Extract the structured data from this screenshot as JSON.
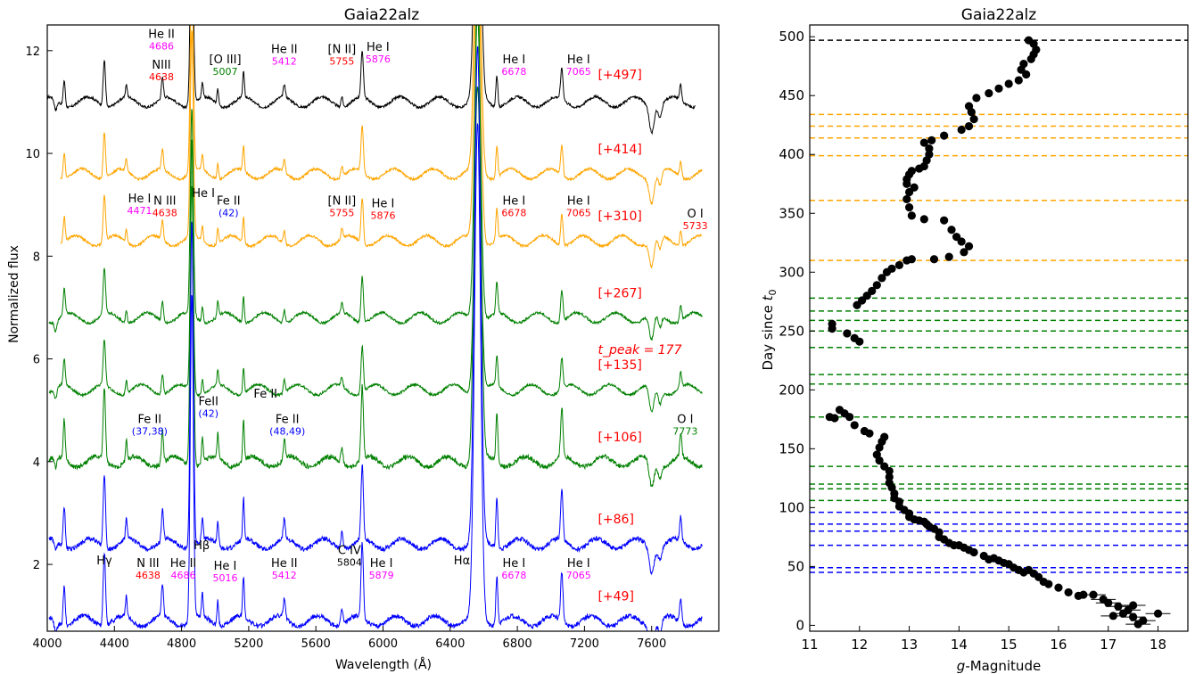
{
  "chart_data": [
    {
      "type": "line",
      "title": "Gaia22alz",
      "xlabel": "Wavelength (Å)",
      "ylabel": "Normalized flux",
      "xlim": [
        4000,
        8000
      ],
      "ylim": [
        0.7,
        12.5
      ],
      "xticks": [
        4000,
        4400,
        4800,
        5200,
        5600,
        6000,
        6400,
        6800,
        7200,
        7600
      ],
      "yticks": [
        2,
        4,
        6,
        8,
        10,
        12
      ],
      "peak_label": "t_peak = 177",
      "series": [
        {
          "label": "[+497]",
          "color": "#000000",
          "offset": 11.0,
          "label_y": 11.45
        },
        {
          "label": "[+414]",
          "color": "#ffa500",
          "offset": 9.6,
          "label_y": 10.0
        },
        {
          "label": "[+310]",
          "color": "#ffa500",
          "offset": 8.3,
          "label_y": 8.7
        },
        {
          "label": "[+267]",
          "color": "#008000",
          "offset": 6.8,
          "label_y": 7.2
        },
        {
          "label": "[+135]",
          "color": "#008000",
          "offset": 5.4,
          "label_y": 5.8
        },
        {
          "label": "[+106]",
          "color": "#008000",
          "offset": 4.0,
          "label_y": 4.4
        },
        {
          "label": "[+86]",
          "color": "#0000ff",
          "offset": 2.4,
          "label_y": 2.8
        },
        {
          "label": "[+49]",
          "color": "#0000ff",
          "offset": 0.9,
          "label_y": 1.3
        }
      ],
      "line_ids": [
        {
          "name": "He II",
          "value": "4686",
          "value_color": "#ff00ff",
          "x": 4680,
          "y": 12.25
        },
        {
          "name": "NIII",
          "value": "4638",
          "value_color": "#ff0000",
          "x": 4680,
          "y": 11.65
        },
        {
          "name": "[O III]",
          "value": "5007",
          "value_color": "#008000",
          "x": 5060,
          "y": 11.75
        },
        {
          "name": "He II",
          "value": "5412",
          "value_color": "#ff00ff",
          "x": 5412,
          "y": 11.95
        },
        {
          "name": "[N II]",
          "value": "5755",
          "value_color": "#ff0000",
          "x": 5755,
          "y": 11.95
        },
        {
          "name": "He I",
          "value": "5876",
          "value_color": "#ff00ff",
          "x": 5970,
          "y": 12.0
        },
        {
          "name": "He I",
          "value": "6678",
          "value_color": "#ff00ff",
          "x": 6780,
          "y": 11.75
        },
        {
          "name": "He I",
          "value": "7065",
          "value_color": "#ff00ff",
          "x": 7165,
          "y": 11.75
        },
        {
          "name": "He I",
          "value": "4471",
          "value_color": "#ff00ff",
          "x": 4550,
          "y": 9.05
        },
        {
          "name": "N III",
          "value": "4638",
          "value_color": "#ff0000",
          "x": 4700,
          "y": 9.0
        },
        {
          "name": "He I",
          "value": "",
          "value_color": "#ff00ff",
          "x": 4930,
          "y": 9.15
        },
        {
          "name": "Fe II",
          "value": "(42)",
          "value_color": "#0000ff",
          "x": 5080,
          "y": 9.0
        },
        {
          "name": "[N II]",
          "value": "5755",
          "value_color": "#ff0000",
          "x": 5755,
          "y": 9.0
        },
        {
          "name": "He I",
          "value": "5876",
          "value_color": "#ff0000",
          "x": 6000,
          "y": 8.95
        },
        {
          "name": "He I",
          "value": "6678",
          "value_color": "#ff0000",
          "x": 6780,
          "y": 9.0
        },
        {
          "name": "He I",
          "value": "7065",
          "value_color": "#ff0000",
          "x": 7165,
          "y": 9.0
        },
        {
          "name": "O I",
          "value": "5733",
          "value_color": "#ff0000",
          "x": 7860,
          "y": 8.75
        },
        {
          "name": "Fe II",
          "value": "(37,38)",
          "value_color": "#0000ff",
          "x": 4610,
          "y": 4.75
        },
        {
          "name": "FeII",
          "value": "(42)",
          "value_color": "#0000ff",
          "x": 4960,
          "y": 5.1
        },
        {
          "name": "Fe II",
          "value": "",
          "value_color": "#0000ff",
          "x": 5300,
          "y": 5.25
        },
        {
          "name": "Fe II",
          "value": "(48,49)",
          "value_color": "#0000ff",
          "x": 5430,
          "y": 4.75
        },
        {
          "name": "O I",
          "value": "7773",
          "value_color": "#008000",
          "x": 7800,
          "y": 4.75
        },
        {
          "name": "Hγ",
          "value": "",
          "value_color": "#000000",
          "x": 4340,
          "y": 2.0
        },
        {
          "name": "N III",
          "value": "4638",
          "value_color": "#ff0000",
          "x": 4600,
          "y": 1.95
        },
        {
          "name": "He II",
          "value": "4686",
          "value_color": "#ff00ff",
          "x": 4810,
          "y": 1.95
        },
        {
          "name": "Hβ",
          "value": "",
          "value_color": "#000000",
          "x": 4920,
          "y": 2.3
        },
        {
          "name": "He I",
          "value": "5016",
          "value_color": "#ff00ff",
          "x": 5060,
          "y": 1.9
        },
        {
          "name": "He II",
          "value": "5412",
          "value_color": "#ff00ff",
          "x": 5412,
          "y": 1.95
        },
        {
          "name": "C IV",
          "value": "5804",
          "value_color": "#000000",
          "x": 5800,
          "y": 2.2
        },
        {
          "name": "He I",
          "value": "5879",
          "value_color": "#ff00ff",
          "x": 5990,
          "y": 1.95
        },
        {
          "name": "Hα",
          "value": "",
          "value_color": "#000000",
          "x": 6470,
          "y": 2.0
        },
        {
          "name": "He I",
          "value": "6678",
          "value_color": "#ff00ff",
          "x": 6780,
          "y": 1.95
        },
        {
          "name": "He I",
          "value": "7065",
          "value_color": "#ff00ff",
          "x": 7165,
          "y": 1.95
        }
      ]
    },
    {
      "type": "scatter",
      "title": "Gaia22alz",
      "xlabel": "g-Magnitude",
      "ylabel": "Day since t0",
      "xlim": [
        11,
        18.6
      ],
      "ylim": [
        -5,
        510
      ],
      "xticks": [
        11,
        12,
        13,
        14,
        15,
        16,
        17,
        18
      ],
      "yticks": [
        0,
        50,
        100,
        150,
        200,
        250,
        300,
        350,
        400,
        450,
        500
      ],
      "hlines": [
        {
          "day": 497,
          "color": "#000000"
        },
        {
          "day": 434,
          "color": "#ffa500"
        },
        {
          "day": 424,
          "color": "#ffa500"
        },
        {
          "day": 414,
          "color": "#ffa500"
        },
        {
          "day": 399,
          "color": "#ffa500"
        },
        {
          "day": 361,
          "color": "#ffa500"
        },
        {
          "day": 310,
          "color": "#ffa500"
        },
        {
          "day": 278,
          "color": "#008000"
        },
        {
          "day": 267,
          "color": "#008000"
        },
        {
          "day": 259,
          "color": "#008000"
        },
        {
          "day": 250,
          "color": "#008000"
        },
        {
          "day": 236,
          "color": "#008000"
        },
        {
          "day": 213,
          "color": "#008000"
        },
        {
          "day": 205,
          "color": "#008000"
        },
        {
          "day": 177,
          "color": "#008000"
        },
        {
          "day": 135,
          "color": "#008000"
        },
        {
          "day": 120,
          "color": "#008000"
        },
        {
          "day": 116,
          "color": "#008000"
        },
        {
          "day": 106,
          "color": "#008000"
        },
        {
          "day": 96,
          "color": "#0000ff"
        },
        {
          "day": 86,
          "color": "#0000ff"
        },
        {
          "day": 80,
          "color": "#0000ff"
        },
        {
          "day": 68,
          "color": "#0000ff"
        },
        {
          "day": 49,
          "color": "#0000ff"
        },
        {
          "day": 45,
          "color": "#0000ff"
        }
      ],
      "points": [
        [
          18.0,
          10
        ],
        [
          17.7,
          4
        ],
        [
          17.6,
          1
        ],
        [
          17.5,
          7
        ],
        [
          17.5,
          17
        ],
        [
          17.4,
          13
        ],
        [
          17.3,
          10
        ],
        [
          17.2,
          16
        ],
        [
          17.1,
          8
        ],
        [
          17.0,
          19
        ],
        [
          16.9,
          22
        ],
        [
          16.7,
          26
        ],
        [
          16.5,
          26
        ],
        [
          16.4,
          25
        ],
        [
          16.2,
          28
        ],
        [
          16.0,
          32
        ],
        [
          15.8,
          35
        ],
        [
          15.7,
          37
        ],
        [
          15.6,
          41
        ],
        [
          15.5,
          44
        ],
        [
          15.4,
          47
        ],
        [
          15.3,
          45
        ],
        [
          15.2,
          47
        ],
        [
          15.1,
          49
        ],
        [
          15.0,
          52
        ],
        [
          14.9,
          53
        ],
        [
          14.8,
          55
        ],
        [
          14.7,
          57
        ],
        [
          14.6,
          56
        ],
        [
          14.5,
          59
        ],
        [
          14.3,
          62
        ],
        [
          14.2,
          64
        ],
        [
          14.1,
          66
        ],
        [
          14.0,
          68
        ],
        [
          13.9,
          68
        ],
        [
          13.8,
          70
        ],
        [
          13.7,
          73
        ],
        [
          13.6,
          75
        ],
        [
          13.6,
          79
        ],
        [
          13.5,
          82
        ],
        [
          13.4,
          84
        ],
        [
          13.35,
          86
        ],
        [
          13.3,
          88
        ],
        [
          13.2,
          89
        ],
        [
          13.1,
          90
        ],
        [
          13.0,
          92
        ],
        [
          13.0,
          95
        ],
        [
          12.9,
          98
        ],
        [
          12.8,
          101
        ],
        [
          12.8,
          105
        ],
        [
          12.7,
          108
        ],
        [
          12.7,
          112
        ],
        [
          12.65,
          117
        ],
        [
          12.6,
          121
        ],
        [
          12.6,
          126
        ],
        [
          12.6,
          131
        ],
        [
          12.5,
          135
        ],
        [
          12.4,
          140
        ],
        [
          12.35,
          145
        ],
        [
          12.4,
          151
        ],
        [
          12.45,
          156
        ],
        [
          12.5,
          160
        ],
        [
          12.2,
          163
        ],
        [
          12.1,
          165
        ],
        [
          11.9,
          170
        ],
        [
          11.8,
          177
        ],
        [
          11.7,
          180
        ],
        [
          11.6,
          183
        ],
        [
          11.5,
          176
        ],
        [
          11.4,
          177
        ],
        [
          12.0,
          241
        ],
        [
          11.9,
          244
        ],
        [
          11.75,
          248
        ],
        [
          11.45,
          252
        ],
        [
          11.45,
          256
        ],
        [
          11.95,
          272
        ],
        [
          12.05,
          276
        ],
        [
          12.15,
          280
        ],
        [
          12.25,
          284
        ],
        [
          12.35,
          289
        ],
        [
          12.45,
          295
        ],
        [
          12.55,
          300
        ],
        [
          12.65,
          303
        ],
        [
          12.8,
          306
        ],
        [
          12.95,
          310
        ],
        [
          13.05,
          311
        ],
        [
          13.5,
          311
        ],
        [
          13.8,
          313
        ],
        [
          14.1,
          317
        ],
        [
          14.2,
          322
        ],
        [
          14.05,
          326
        ],
        [
          13.95,
          330
        ],
        [
          13.85,
          336
        ],
        [
          13.7,
          344
        ],
        [
          13.3,
          345
        ],
        [
          13.05,
          348
        ],
        [
          13.0,
          355
        ],
        [
          12.95,
          362
        ],
        [
          13.0,
          368
        ],
        [
          13.1,
          372
        ],
        [
          12.95,
          375
        ],
        [
          12.95,
          379
        ],
        [
          13.0,
          383
        ],
        [
          13.05,
          386
        ],
        [
          13.2,
          388
        ],
        [
          13.3,
          390
        ],
        [
          13.35,
          395
        ],
        [
          13.4,
          400
        ],
        [
          13.4,
          405
        ],
        [
          13.3,
          410
        ],
        [
          13.45,
          412
        ],
        [
          13.7,
          416
        ],
        [
          14.05,
          421
        ],
        [
          14.2,
          424
        ],
        [
          14.3,
          430
        ],
        [
          14.25,
          436
        ],
        [
          14.2,
          441
        ],
        [
          14.35,
          448
        ],
        [
          14.6,
          452
        ],
        [
          14.8,
          456
        ],
        [
          15.0,
          460
        ],
        [
          15.2,
          463
        ],
        [
          15.35,
          468
        ],
        [
          15.25,
          472
        ],
        [
          15.3,
          477
        ],
        [
          15.45,
          481
        ],
        [
          15.5,
          485
        ],
        [
          15.55,
          489
        ],
        [
          15.5,
          494
        ],
        [
          15.4,
          497
        ]
      ]
    }
  ]
}
